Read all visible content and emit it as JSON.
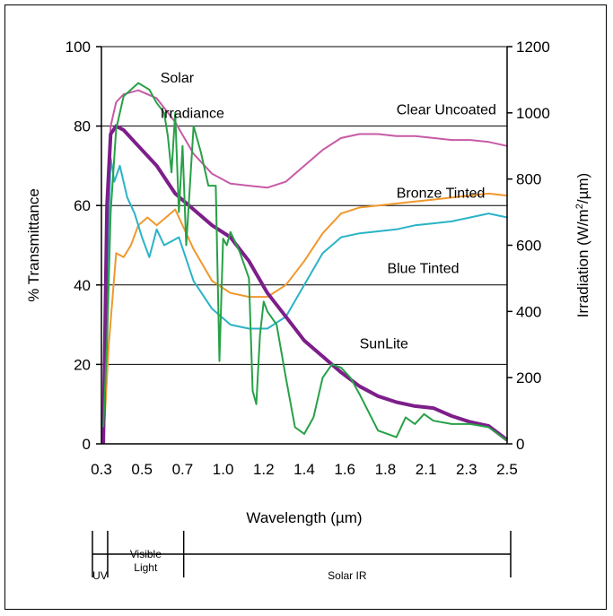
{
  "chart_data": {
    "type": "line",
    "xlabel": "Wavelength (µm)",
    "ylabel": "% Transmittance",
    "y2label": "Irradiation (W/m²/µm)",
    "xlim": [
      0.3,
      2.5
    ],
    "ylim": [
      0,
      100
    ],
    "y2lim": [
      0,
      1200
    ],
    "x_ticks": [
      "0.3",
      "0.5",
      "0.7",
      "1.0",
      "1.2",
      "1.4",
      "1.6",
      "1.8",
      "2.1",
      "2.3",
      "2.5"
    ],
    "y_ticks": [
      "0",
      "20",
      "40",
      "60",
      "80",
      "100"
    ],
    "y2_ticks": [
      "0",
      "200",
      "400",
      "600",
      "800",
      "1000",
      "1200"
    ],
    "grid": "horizontal",
    "series": [
      {
        "name": "Clear Uncoated",
        "color": "#c75aa6",
        "axis": "left",
        "x": [
          0.31,
          0.33,
          0.35,
          0.38,
          0.42,
          0.5,
          0.6,
          0.7,
          0.8,
          0.9,
          1.0,
          1.1,
          1.2,
          1.3,
          1.4,
          1.5,
          1.6,
          1.7,
          1.8,
          1.9,
          2.0,
          2.1,
          2.2,
          2.3,
          2.4,
          2.5
        ],
        "y": [
          0,
          55,
          80,
          86,
          88,
          89,
          87,
          81,
          73,
          68,
          65.5,
          65,
          64.5,
          66,
          70,
          74,
          77,
          78,
          78,
          77.5,
          77.5,
          77,
          76.5,
          76.5,
          76,
          75
        ]
      },
      {
        "name": "Bronze Tinted",
        "color": "#f0982e",
        "axis": "left",
        "x": [
          0.31,
          0.34,
          0.38,
          0.42,
          0.46,
          0.5,
          0.55,
          0.6,
          0.65,
          0.7,
          0.75,
          0.8,
          0.9,
          1.0,
          1.1,
          1.2,
          1.3,
          1.4,
          1.5,
          1.6,
          1.7,
          1.8,
          1.9,
          2.0,
          2.1,
          2.2,
          2.3,
          2.4,
          2.5
        ],
        "y": [
          0,
          25,
          48,
          47,
          50,
          55,
          57,
          55,
          57,
          59,
          54,
          49,
          41,
          38,
          37,
          37,
          40,
          46,
          53,
          58,
          59.5,
          60,
          60.5,
          61,
          61.5,
          62,
          62.5,
          63,
          62.5
        ]
      },
      {
        "name": "Blue Tinted",
        "color": "#2ab3c6",
        "axis": "left",
        "x": [
          0.31,
          0.33,
          0.35,
          0.37,
          0.4,
          0.44,
          0.48,
          0.52,
          0.56,
          0.6,
          0.64,
          0.68,
          0.72,
          0.8,
          0.9,
          1.0,
          1.1,
          1.2,
          1.3,
          1.4,
          1.5,
          1.6,
          1.7,
          1.8,
          1.9,
          2.0,
          2.1,
          2.2,
          2.3,
          2.4,
          2.5
        ],
        "y": [
          0,
          40,
          72,
          66,
          70,
          62,
          58,
          52,
          47,
          54,
          50,
          51,
          52,
          41,
          34,
          30,
          29,
          29,
          32,
          40,
          48,
          52,
          53,
          53.5,
          54,
          55,
          55.5,
          56,
          57,
          58,
          57
        ]
      },
      {
        "name": "SunLite",
        "color": "#7d1e8a",
        "axis": "left",
        "x": [
          0.31,
          0.33,
          0.35,
          0.38,
          0.42,
          0.5,
          0.6,
          0.7,
          0.8,
          0.9,
          1.0,
          1.1,
          1.2,
          1.3,
          1.4,
          1.5,
          1.6,
          1.7,
          1.8,
          1.9,
          2.0,
          2.1,
          2.2,
          2.3,
          2.4,
          2.5
        ],
        "y": [
          0,
          60,
          78,
          80,
          79,
          75,
          70,
          63,
          59,
          55,
          52,
          46,
          38,
          32,
          26,
          22,
          18,
          14.5,
          12,
          10.5,
          9.5,
          9,
          7,
          5.5,
          4.5,
          1
        ]
      },
      {
        "name": "Solar Irradiance",
        "color": "#27a147",
        "axis": "right",
        "x": [
          0.31,
          0.33,
          0.35,
          0.38,
          0.42,
          0.46,
          0.5,
          0.53,
          0.56,
          0.6,
          0.64,
          0.66,
          0.68,
          0.7,
          0.72,
          0.74,
          0.76,
          0.8,
          0.84,
          0.88,
          0.92,
          0.94,
          0.96,
          0.98,
          1.0,
          1.05,
          1.1,
          1.12,
          1.14,
          1.16,
          1.18,
          1.2,
          1.25,
          1.3,
          1.35,
          1.4,
          1.45,
          1.5,
          1.55,
          1.6,
          1.65,
          1.7,
          1.8,
          1.9,
          1.95,
          2.0,
          2.05,
          2.1,
          2.2,
          2.3,
          2.4,
          2.5
        ],
        "y": [
          50,
          300,
          700,
          950,
          1050,
          1070,
          1090,
          1080,
          1070,
          1030,
          1000,
          930,
          820,
          1000,
          700,
          900,
          600,
          960,
          880,
          780,
          780,
          250,
          620,
          600,
          640,
          580,
          500,
          160,
          120,
          330,
          430,
          400,
          360,
          200,
          50,
          30,
          80,
          200,
          240,
          230,
          200,
          150,
          40,
          20,
          80,
          60,
          90,
          70,
          60,
          60,
          50,
          10
        ]
      }
    ],
    "labels": [
      {
        "text": "Solar",
        "x": 0.62,
        "y": 91
      },
      {
        "text": "Irradiance",
        "x": 0.62,
        "y": 82
      },
      {
        "text": "Clear Uncoated",
        "x": 1.9,
        "y": 83
      },
      {
        "text": "Bronze Tinted",
        "x": 1.9,
        "y": 62
      },
      {
        "text": "Blue Tinted",
        "x": 1.85,
        "y": 43
      },
      {
        "text": "SunLite",
        "x": 1.7,
        "y": 24
      }
    ],
    "bands": [
      {
        "label": [
          "UV"
        ],
        "from": 0.3,
        "to": 0.38
      },
      {
        "label": [
          "Visible",
          "Light"
        ],
        "from": 0.38,
        "to": 0.78
      },
      {
        "label": [
          "Solar IR"
        ],
        "from": 0.78,
        "to": 2.5
      }
    ]
  }
}
